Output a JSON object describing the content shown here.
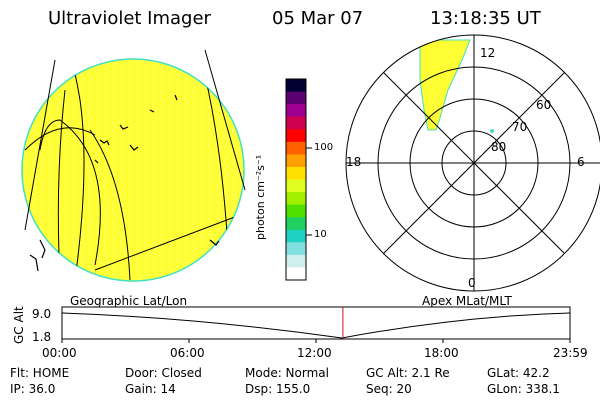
{
  "header": {
    "instrument": "Ultraviolet Imager",
    "date": "05 Mar 07",
    "time": "13:18:35 UT"
  },
  "colorbar": {
    "unit_label": "photon cm⁻²s⁻¹",
    "tick_100": "100",
    "tick_10": "10",
    "colors": [
      "#000030",
      "#5a0070",
      "#a00090",
      "#d00050",
      "#ff0000",
      "#ff6000",
      "#ffa000",
      "#ffe000",
      "#e0ff20",
      "#a0f000",
      "#50e000",
      "#20d060",
      "#20d0c0",
      "#80e0e0",
      "#d0f0f0",
      "#ffffff"
    ]
  },
  "panels": {
    "left_caption": "Geographic Lat/Lon",
    "right_caption": "Apex MLat/MLT",
    "earth_fill": "#ffff33",
    "earth_rim": "#40e0c0"
  },
  "polar": {
    "mlt_top": "12",
    "mlt_left": "18",
    "mlt_right": "6",
    "mlt_bottom": "0",
    "lat_60": "60",
    "lat_70": "70",
    "lat_80": "80"
  },
  "timeline": {
    "axis_label": "GC Alt",
    "y_top": "9.0",
    "y_bottom": "1.8",
    "x_ticks": [
      "00:00",
      "06:00",
      "12:00",
      "18:00",
      "23:59"
    ],
    "marker_fraction": 0.553,
    "marker_color": "#d01010"
  },
  "status": {
    "flt": "Flt: HOME",
    "door": "Door: Closed",
    "mode": "Mode: Normal",
    "gc_alt": "GC Alt: 2.1 Re",
    "glat": "GLat:  42.2",
    "ip": "IP: 36.0",
    "gain": "Gain: 14",
    "dsp": "Dsp:  155.0",
    "seq": "Seq: 20",
    "glon": "GLon: 338.1"
  }
}
